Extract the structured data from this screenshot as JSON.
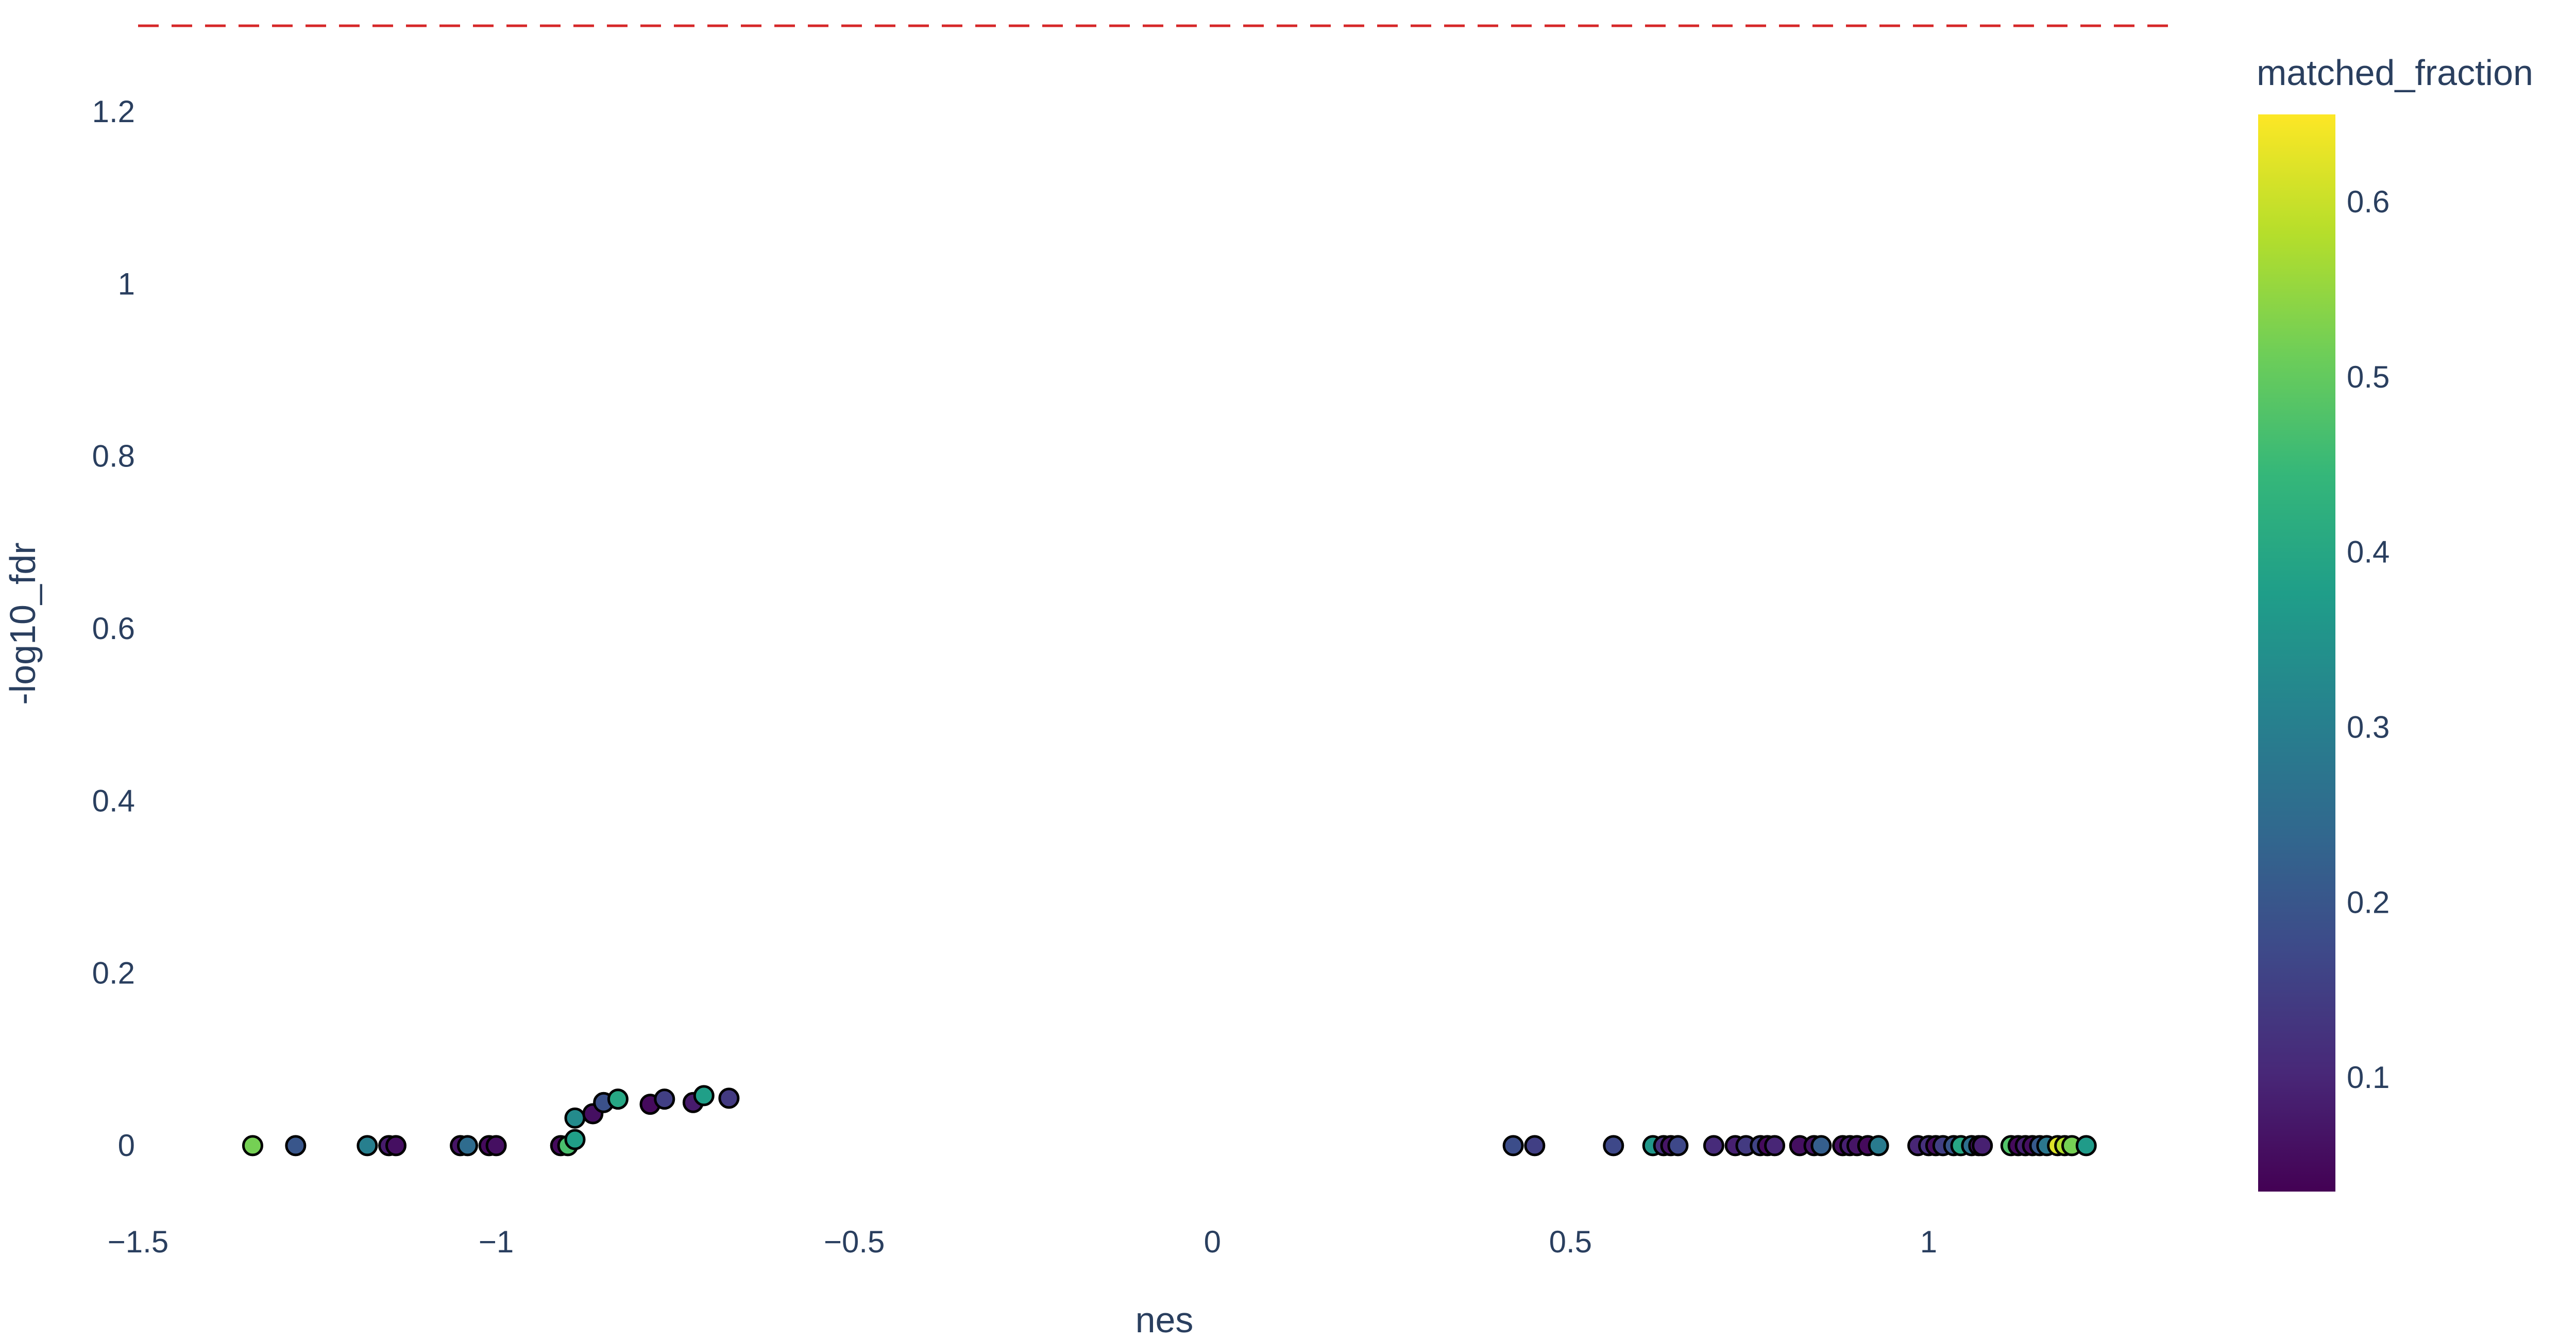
{
  "chart_data": {
    "type": "scatter",
    "title": "",
    "xlabel": "nes",
    "ylabel": "-log10_fdr",
    "xlim": [
      -1.5,
      1.35
    ],
    "ylim": [
      -0.1,
      1.3
    ],
    "xticks": [
      -1.5,
      -1,
      -0.5,
      0,
      0.5,
      1
    ],
    "xtick_labels": [
      "−1.5",
      "−1",
      "−0.5",
      "0",
      "0.5",
      "1"
    ],
    "yticks": [
      0,
      0.2,
      0.4,
      0.6,
      0.8,
      1,
      1.2
    ],
    "ytick_labels": [
      "0",
      "0.2",
      "0.4",
      "0.6",
      "0.8",
      "1",
      "1.2"
    ],
    "threshold_line": {
      "y": 1.3,
      "color": "#d62728",
      "style": "dashed"
    },
    "grid": false,
    "colorbar": {
      "title": "matched_fraction",
      "colorscale": "Viridis",
      "cmin": 0.035,
      "cmax": 0.65,
      "ticks": [
        0.1,
        0.2,
        0.3,
        0.4,
        0.5,
        0.6
      ],
      "tick_labels": [
        "0.1",
        "0.2",
        "0.3",
        "0.4",
        "0.5",
        "0.6"
      ],
      "stops": [
        "#440154",
        "#482878",
        "#3e4989",
        "#31688e",
        "#26828e",
        "#1f9e89",
        "#35b779",
        "#6ece58",
        "#b5de2b",
        "#fde725"
      ]
    },
    "points": [
      {
        "x": -1.34,
        "y": 0.0,
        "c": 0.52
      },
      {
        "x": -1.28,
        "y": 0.0,
        "c": 0.2
      },
      {
        "x": -1.18,
        "y": 0.0,
        "c": 0.3
      },
      {
        "x": -1.15,
        "y": 0.0,
        "c": 0.08
      },
      {
        "x": -1.14,
        "y": 0.0,
        "c": 0.06
      },
      {
        "x": -1.05,
        "y": 0.0,
        "c": 0.07
      },
      {
        "x": -1.04,
        "y": 0.0,
        "c": 0.25
      },
      {
        "x": -1.01,
        "y": 0.0,
        "c": 0.05
      },
      {
        "x": -1.0,
        "y": 0.0,
        "c": 0.06
      },
      {
        "x": -0.91,
        "y": 0.0,
        "c": 0.05
      },
      {
        "x": -0.9,
        "y": 0.0,
        "c": 0.47
      },
      {
        "x": -0.89,
        "y": 0.007,
        "c": 0.38
      },
      {
        "x": -0.89,
        "y": 0.032,
        "c": 0.33
      },
      {
        "x": -0.865,
        "y": 0.037,
        "c": 0.06
      },
      {
        "x": -0.85,
        "y": 0.05,
        "c": 0.19
      },
      {
        "x": -0.83,
        "y": 0.054,
        "c": 0.4
      },
      {
        "x": -0.785,
        "y": 0.048,
        "c": 0.05
      },
      {
        "x": -0.765,
        "y": 0.054,
        "c": 0.15
      },
      {
        "x": -0.725,
        "y": 0.05,
        "c": 0.08
      },
      {
        "x": -0.71,
        "y": 0.058,
        "c": 0.38
      },
      {
        "x": -0.675,
        "y": 0.055,
        "c": 0.14
      },
      {
        "x": 0.42,
        "y": 0.0,
        "c": 0.18
      },
      {
        "x": 0.45,
        "y": 0.0,
        "c": 0.15
      },
      {
        "x": 0.56,
        "y": 0.0,
        "c": 0.17
      },
      {
        "x": 0.615,
        "y": 0.0,
        "c": 0.36
      },
      {
        "x": 0.63,
        "y": 0.0,
        "c": 0.12
      },
      {
        "x": 0.64,
        "y": 0.0,
        "c": 0.07
      },
      {
        "x": 0.65,
        "y": 0.0,
        "c": 0.17
      },
      {
        "x": 0.7,
        "y": 0.0,
        "c": 0.11
      },
      {
        "x": 0.73,
        "y": 0.0,
        "c": 0.09
      },
      {
        "x": 0.745,
        "y": 0.0,
        "c": 0.14
      },
      {
        "x": 0.765,
        "y": 0.0,
        "c": 0.16
      },
      {
        "x": 0.775,
        "y": 0.0,
        "c": 0.05
      },
      {
        "x": 0.785,
        "y": 0.0,
        "c": 0.1
      },
      {
        "x": 0.82,
        "y": 0.0,
        "c": 0.06
      },
      {
        "x": 0.84,
        "y": 0.0,
        "c": 0.07
      },
      {
        "x": 0.85,
        "y": 0.0,
        "c": 0.22
      },
      {
        "x": 0.88,
        "y": 0.0,
        "c": 0.06
      },
      {
        "x": 0.89,
        "y": 0.0,
        "c": 0.09
      },
      {
        "x": 0.9,
        "y": 0.0,
        "c": 0.07
      },
      {
        "x": 0.915,
        "y": 0.0,
        "c": 0.05
      },
      {
        "x": 0.93,
        "y": 0.0,
        "c": 0.29
      },
      {
        "x": 0.985,
        "y": 0.0,
        "c": 0.1
      },
      {
        "x": 1.0,
        "y": 0.0,
        "c": 0.12
      },
      {
        "x": 1.01,
        "y": 0.0,
        "c": 0.06
      },
      {
        "x": 1.02,
        "y": 0.0,
        "c": 0.15
      },
      {
        "x": 1.035,
        "y": 0.0,
        "c": 0.2
      },
      {
        "x": 1.045,
        "y": 0.0,
        "c": 0.4
      },
      {
        "x": 1.06,
        "y": 0.0,
        "c": 0.26
      },
      {
        "x": 1.07,
        "y": 0.0,
        "c": 0.07
      },
      {
        "x": 1.075,
        "y": 0.0,
        "c": 0.09
      },
      {
        "x": 1.115,
        "y": 0.0,
        "c": 0.48
      },
      {
        "x": 1.125,
        "y": 0.0,
        "c": 0.05
      },
      {
        "x": 1.135,
        "y": 0.0,
        "c": 0.09
      },
      {
        "x": 1.145,
        "y": 0.0,
        "c": 0.06
      },
      {
        "x": 1.155,
        "y": 0.0,
        "c": 0.21
      },
      {
        "x": 1.165,
        "y": 0.0,
        "c": 0.28
      },
      {
        "x": 1.18,
        "y": 0.0,
        "c": 0.62
      },
      {
        "x": 1.19,
        "y": 0.0,
        "c": 0.58
      },
      {
        "x": 1.2,
        "y": 0.0,
        "c": 0.52
      },
      {
        "x": 1.22,
        "y": 0.0,
        "c": 0.37
      }
    ]
  }
}
